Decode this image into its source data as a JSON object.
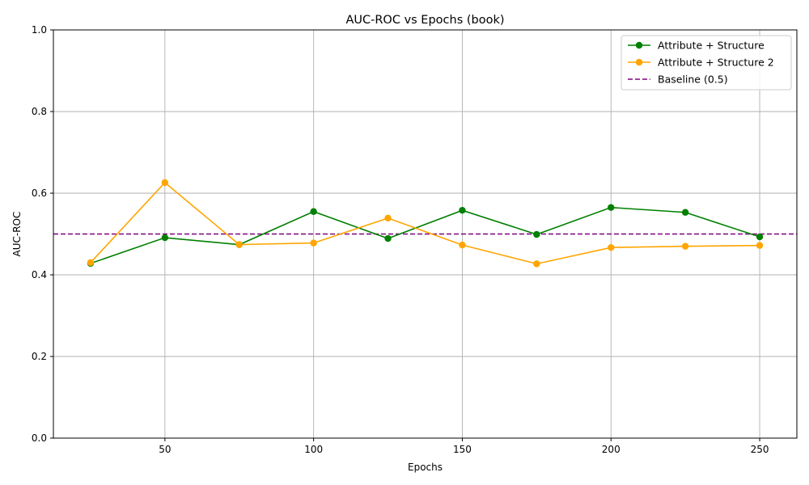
{
  "chart_data": {
    "type": "line",
    "title": "AUC-ROC vs Epochs (book)",
    "xlabel": "Epochs",
    "ylabel": "AUC-ROC",
    "x": [
      25,
      50,
      75,
      100,
      125,
      150,
      175,
      200,
      225,
      250
    ],
    "xlim": [
      12.5,
      262.5
    ],
    "ylim": [
      0,
      1.0
    ],
    "xticks": [
      50,
      100,
      150,
      200,
      250
    ],
    "yticks": [
      0.0,
      0.2,
      0.4,
      0.6,
      0.8,
      1.0
    ],
    "xtick_labels": [
      "50",
      "100",
      "150",
      "200",
      "250"
    ],
    "ytick_labels": [
      "0.0",
      "0.2",
      "0.4",
      "0.6",
      "0.8",
      "1.0"
    ],
    "grid": true,
    "legend_position": "top-right",
    "series": [
      {
        "name": "Attribute + Structure",
        "color": "#008000",
        "style": "solid",
        "marker": "circle",
        "values": [
          0.428,
          0.491,
          0.474,
          0.555,
          0.489,
          0.558,
          0.499,
          0.565,
          0.553,
          0.493
        ]
      },
      {
        "name": "Attribute + Structure 2",
        "color": "#ffa500",
        "style": "solid",
        "marker": "circle",
        "values": [
          0.43,
          0.626,
          0.474,
          0.478,
          0.539,
          0.473,
          0.427,
          0.467,
          0.47,
          0.472
        ]
      }
    ],
    "baseline": {
      "name": "Baseline (0.5)",
      "value": 0.5,
      "color": "#800080",
      "style": "dashed"
    }
  }
}
